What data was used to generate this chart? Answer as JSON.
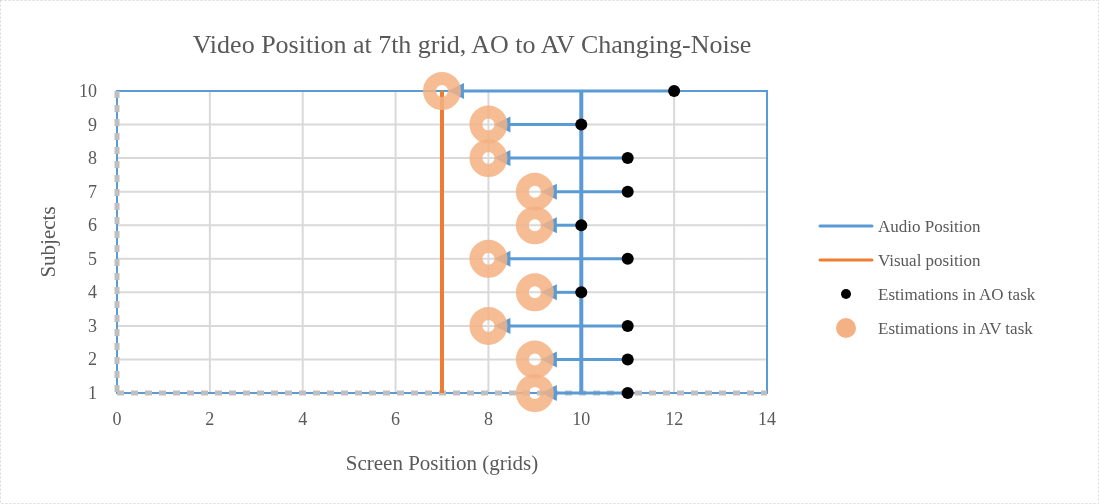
{
  "chart_data": {
    "type": "scatter",
    "title": "Video Position at 7th grid, AO to AV Changing-Noise",
    "xlabel": "Screen Position (grids)",
    "ylabel": "Subjects",
    "xlim": [
      0,
      14
    ],
    "xticks": [
      0,
      2,
      4,
      6,
      8,
      10,
      12,
      14
    ],
    "ylim": [
      1,
      10
    ],
    "yticks": [
      1,
      2,
      3,
      4,
      5,
      6,
      7,
      8,
      9,
      10
    ],
    "grid": true,
    "legend": "right",
    "series": [
      {
        "name": "Audio Position",
        "type": "line",
        "color": "#5b9bd5",
        "x": [
          10,
          10
        ],
        "values": [
          1,
          10
        ]
      },
      {
        "name": "Visual position",
        "type": "line",
        "color": "#ed7d31",
        "x": [
          7,
          7
        ],
        "values": [
          1,
          10
        ]
      },
      {
        "name": "Estimations in AO task",
        "color": "#000000",
        "x": [
          11,
          11,
          11,
          10,
          11,
          10,
          11,
          11,
          10,
          12
        ],
        "values": [
          1,
          2,
          3,
          4,
          5,
          6,
          7,
          8,
          9,
          10
        ]
      },
      {
        "name": "Estimations in AV task",
        "color": "#f4b183",
        "x": [
          9,
          9,
          8,
          9,
          8,
          9,
          9,
          8,
          8,
          7
        ],
        "values": [
          1,
          2,
          3,
          4,
          5,
          6,
          7,
          8,
          9,
          10
        ]
      }
    ]
  }
}
